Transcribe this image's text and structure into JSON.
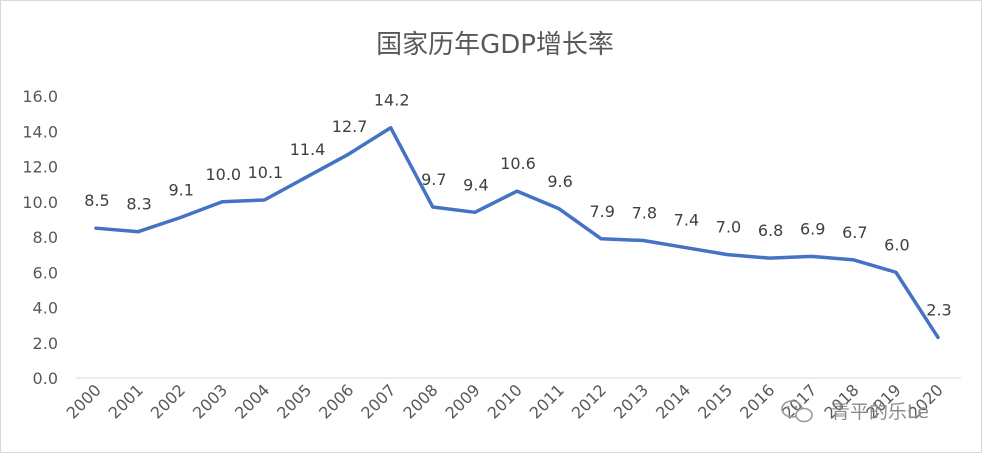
{
  "chart_data": {
    "type": "line",
    "title": "国家历年GDP增长率",
    "xlabel": "",
    "ylabel": "",
    "categories": [
      "2000",
      "2001",
      "2002",
      "2003",
      "2004",
      "2005",
      "2006",
      "2007",
      "2008",
      "2009",
      "2010",
      "2011",
      "2012",
      "2013",
      "2014",
      "2015",
      "2016",
      "2017",
      "2018",
      "2019",
      "2020"
    ],
    "series": [
      {
        "values": [
          8.5,
          8.3,
          9.1,
          10.0,
          10.1,
          11.4,
          12.7,
          14.2,
          9.7,
          9.4,
          10.6,
          9.6,
          7.9,
          7.8,
          7.4,
          7.0,
          6.8,
          6.9,
          6.7,
          6.0,
          2.3
        ],
        "labels": [
          "8.5",
          "8.3",
          "9.1",
          "10.0",
          "10.1",
          "11.4",
          "12.7",
          "14.2",
          "9.7",
          "9.4",
          "10.6",
          "9.6",
          "7.9",
          "7.8",
          "7.4",
          "7.0",
          "6.8",
          "6.9",
          "6.7",
          "6.0",
          "2.3"
        ],
        "color": "#4472c4"
      }
    ],
    "ylim": [
      0,
      16
    ],
    "yticks": [
      "0.0",
      "2.0",
      "4.0",
      "6.0",
      "8.0",
      "10.0",
      "12.0",
      "14.0",
      "16.0"
    ],
    "grid": false,
    "legend": "none"
  },
  "watermark": {
    "text": "青平的乐Le",
    "icon": "wechat-icon"
  }
}
